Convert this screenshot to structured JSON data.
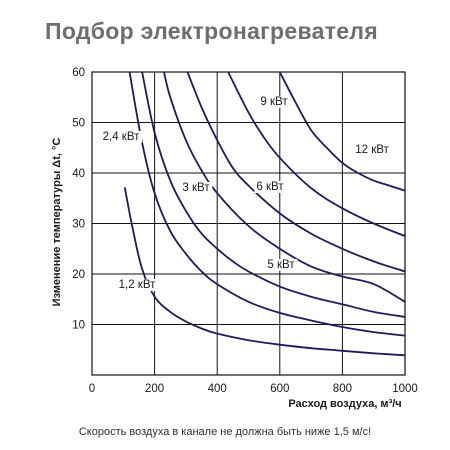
{
  "title": "Подбор электронагревателя",
  "note": "Скорость воздуха в канале не должна быть ниже 1,5 м/с!",
  "chart_data": {
    "type": "line",
    "xlabel": "Расход воздуха, м³/ч",
    "ylabel": "Изменение температуры Δt, °C",
    "xlim": [
      0,
      1000
    ],
    "ylim": [
      0,
      60
    ],
    "xticks": [
      "0",
      "200",
      "400",
      "600",
      "800",
      "1000"
    ],
    "yticks": [
      "10",
      "20",
      "30",
      "40",
      "50",
      "60"
    ],
    "grid": true,
    "line_color": "#1f1a5e",
    "series": [
      {
        "name": "1,2 кВт",
        "x": [
          105,
          130,
          160,
          200,
          250,
          300,
          350,
          400,
          500,
          600,
          700,
          800,
          900,
          1000
        ],
        "y": [
          37,
          29,
          21,
          15.5,
          12.5,
          10.6,
          9.2,
          8.2,
          6.9,
          6.0,
          5.3,
          4.8,
          4.3,
          3.9
        ]
      },
      {
        "name": "2,4 кВт",
        "x": [
          120,
          160,
          200,
          250,
          300,
          350,
          400,
          500,
          600,
          700,
          800,
          900,
          1000
        ],
        "y": [
          60,
          46,
          36,
          28.5,
          24,
          20.5,
          18,
          14.5,
          12.3,
          10.8,
          9.5,
          8.5,
          7.8
        ]
      },
      {
        "name": "3 кВт",
        "x": [
          160,
          200,
          250,
          300,
          350,
          400,
          450,
          500,
          600,
          700,
          800,
          900,
          1000
        ],
        "y": [
          60,
          48,
          38.5,
          32.5,
          28,
          25,
          22.5,
          20.5,
          17.5,
          15.5,
          14,
          12.5,
          11.5
        ]
      },
      {
        "name": "5 кВт",
        "x": [
          230,
          250,
          300,
          350,
          400,
          500,
          600,
          700,
          800,
          900,
          1000
        ],
        "y": [
          60,
          55,
          46.5,
          40.5,
          36,
          29.5,
          25,
          21.5,
          19.5,
          18,
          14.5
        ]
      },
      {
        "name": "6 кВт",
        "x": [
          305,
          350,
          400,
          450,
          500,
          600,
          700,
          800,
          900,
          1000
        ],
        "y": [
          60,
          53,
          46.5,
          41,
          37.5,
          32,
          28,
          25,
          22.5,
          20.5
        ]
      },
      {
        "name": "9 кВт",
        "x": [
          435,
          500,
          550,
          600,
          700,
          800,
          900,
          1000
        ],
        "y": [
          60,
          52,
          47,
          43,
          37,
          33,
          30,
          27.5
        ]
      },
      {
        "name": "12 кВт",
        "x": [
          600,
          650,
          700,
          750,
          800,
          850,
          900,
          950,
          1000
        ],
        "y": [
          60,
          54,
          48.5,
          45,
          42,
          40,
          38.5,
          37.5,
          36.5
        ]
      }
    ]
  }
}
